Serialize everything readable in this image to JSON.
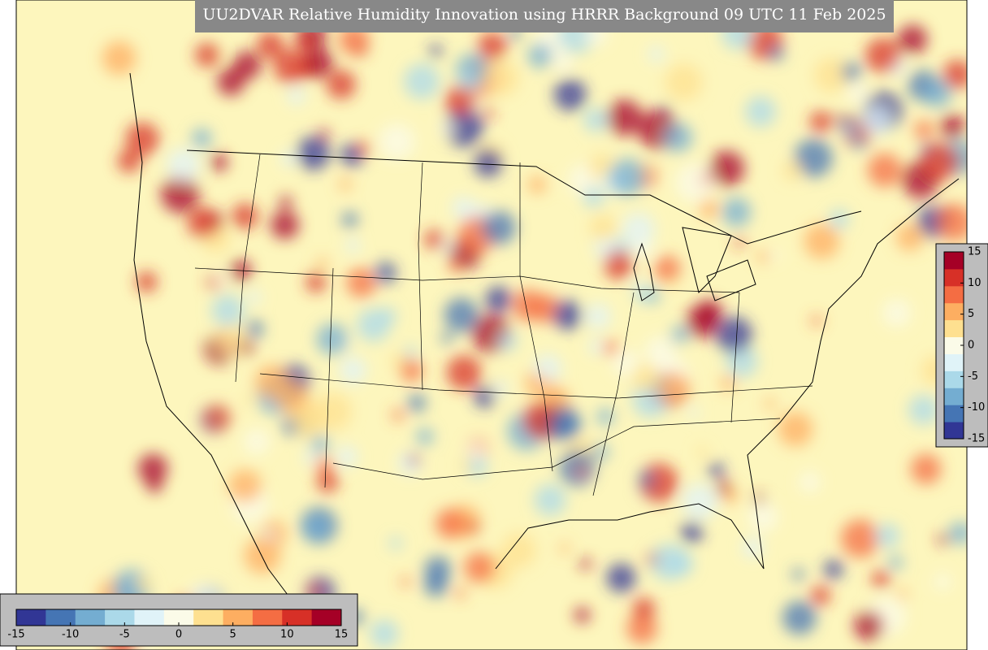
{
  "title": "UU2DVAR Relative Humidity Innovation using HRRR Background 09 UTC 11 Feb 2025",
  "colorbar": {
    "lim": [
      -15,
      15
    ],
    "ticks": [
      -15,
      -10,
      -5,
      0,
      5,
      10,
      15
    ],
    "colors": [
      "#313695",
      "#4575b4",
      "#74add1",
      "#abd9e9",
      "#e0f3f8",
      "#fbfbe8",
      "#fee090",
      "#fdae61",
      "#f46d43",
      "#d73027",
      "#a50026"
    ]
  }
}
